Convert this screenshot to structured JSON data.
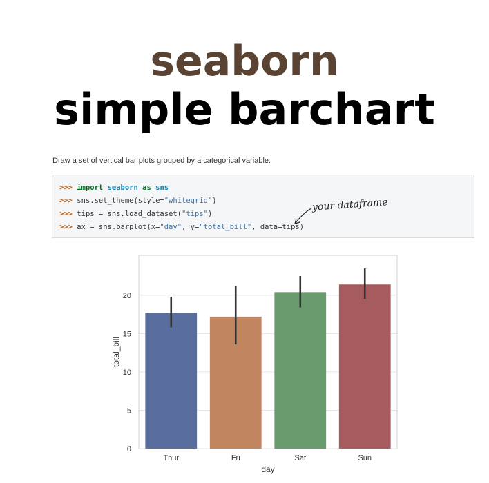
{
  "colors": {
    "title_line1": "#5b4333",
    "title_line2": "#000000",
    "bar_colors": [
      "#5a6e9e",
      "#c1865f",
      "#6a9b6e",
      "#a65c5e"
    ],
    "errorbar": "#333333",
    "grid": "#e6e6e6",
    "frame": "#cfcfcf"
  },
  "header": {
    "title_line1": "seaborn",
    "title_line2": "simple barchart"
  },
  "doc": {
    "description": "Draw a set of vertical bar plots grouped by a categorical variable:",
    "code": {
      "prompt": ">>>",
      "line1": {
        "keyword_import": "import",
        "module": "seaborn",
        "keyword_as": "as",
        "alias": "sns"
      },
      "line2": {
        "pre": "sns.set_theme(style=",
        "str": "\"whitegrid\"",
        "post": ")"
      },
      "line3": {
        "pre": "tips = sns.load_dataset(",
        "str": "\"tips\"",
        "post": ")"
      },
      "line4": {
        "pre": "ax = sns.barplot(x=",
        "str1": "\"day\"",
        "mid": ", y=",
        "str2": "\"total_bill\"",
        "post": ", data=tips)"
      }
    },
    "annotation": "your dataframe"
  },
  "chart_data": {
    "type": "bar",
    "title": "",
    "xlabel": "day",
    "ylabel": "total_bill",
    "categories": [
      "Thur",
      "Fri",
      "Sat",
      "Sun"
    ],
    "values": [
      17.7,
      17.2,
      20.4,
      21.4
    ],
    "error_low": [
      15.8,
      13.6,
      18.4,
      19.5
    ],
    "error_high": [
      19.8,
      21.2,
      22.5,
      23.5
    ],
    "ylim": [
      0,
      25.2
    ],
    "yticks": [
      0,
      5,
      10,
      15,
      20
    ],
    "grid": true,
    "legend": "none"
  }
}
